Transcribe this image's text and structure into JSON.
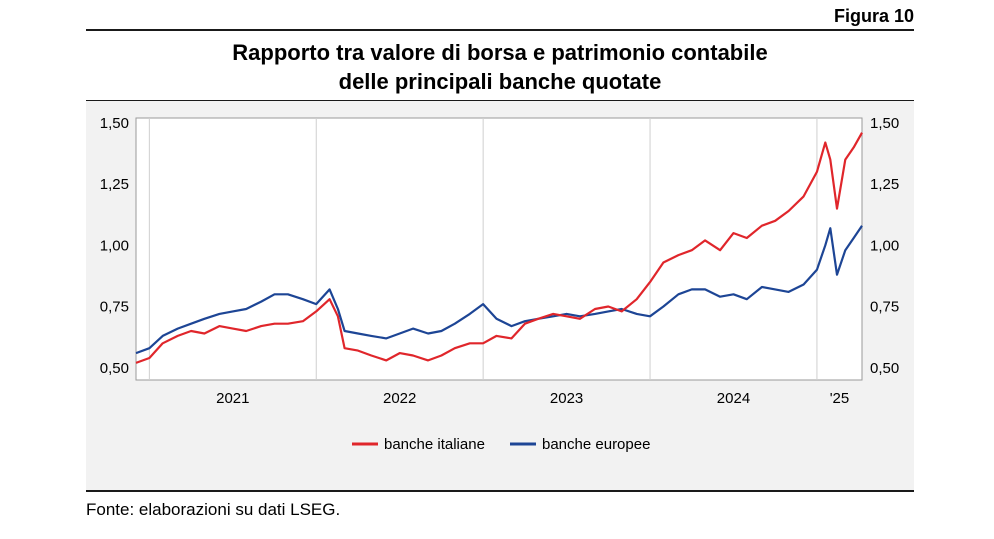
{
  "figure_label": "Figura 10",
  "title_line1": "Rapporto tra valore di borsa e patrimonio contabile",
  "title_line2": "delle principali banche quotate",
  "source": "Fonte: elaborazioni su dati LSEG.",
  "colors": {
    "banche_italiane": "#e0262b",
    "banche_europee": "#1d4595",
    "grid": "#cfcfcf",
    "panel": "#f2f2f2"
  },
  "chart_data": {
    "type": "line",
    "title": "Rapporto tra valore di borsa e patrimonio contabile delle principali banche quotate",
    "xlabel": "",
    "ylabel": "",
    "x_ticks": [
      "2021",
      "2022",
      "2023",
      "2024",
      "'25"
    ],
    "y_ticks": [
      "0,50",
      "0,75",
      "1,00",
      "1,25",
      "1,50"
    ],
    "y_tick_values": [
      0.5,
      0.75,
      1.0,
      1.25,
      1.5
    ],
    "ylim": [
      0.45,
      1.52
    ],
    "xlim": [
      2020.92,
      2025.27
    ],
    "grid": "vertical year separators",
    "legend_position": "bottom-center",
    "x": [
      2020.92,
      2021.0,
      2021.08,
      2021.17,
      2021.25,
      2021.33,
      2021.42,
      2021.5,
      2021.58,
      2021.67,
      2021.75,
      2021.83,
      2021.92,
      2022.0,
      2022.08,
      2022.13,
      2022.17,
      2022.25,
      2022.33,
      2022.42,
      2022.5,
      2022.58,
      2022.67,
      2022.75,
      2022.83,
      2022.92,
      2023.0,
      2023.08,
      2023.17,
      2023.25,
      2023.33,
      2023.42,
      2023.5,
      2023.58,
      2023.67,
      2023.75,
      2023.83,
      2023.92,
      2024.0,
      2024.08,
      2024.17,
      2024.25,
      2024.33,
      2024.42,
      2024.5,
      2024.58,
      2024.67,
      2024.75,
      2024.83,
      2024.92,
      2025.0,
      2025.05,
      2025.08,
      2025.12,
      2025.17,
      2025.22,
      2025.27
    ],
    "series": [
      {
        "name": "banche italiane",
        "values": [
          0.52,
          0.54,
          0.6,
          0.63,
          0.65,
          0.64,
          0.67,
          0.66,
          0.65,
          0.67,
          0.68,
          0.68,
          0.69,
          0.73,
          0.78,
          0.71,
          0.58,
          0.57,
          0.55,
          0.53,
          0.56,
          0.55,
          0.53,
          0.55,
          0.58,
          0.6,
          0.6,
          0.63,
          0.62,
          0.68,
          0.7,
          0.72,
          0.71,
          0.7,
          0.74,
          0.75,
          0.73,
          0.78,
          0.85,
          0.93,
          0.96,
          0.98,
          1.02,
          0.98,
          1.05,
          1.03,
          1.08,
          1.1,
          1.14,
          1.2,
          1.3,
          1.42,
          1.35,
          1.15,
          1.35,
          1.4,
          1.46
        ]
      },
      {
        "name": "banche europee",
        "values": [
          0.56,
          0.58,
          0.63,
          0.66,
          0.68,
          0.7,
          0.72,
          0.73,
          0.74,
          0.77,
          0.8,
          0.8,
          0.78,
          0.76,
          0.82,
          0.74,
          0.65,
          0.64,
          0.63,
          0.62,
          0.64,
          0.66,
          0.64,
          0.65,
          0.68,
          0.72,
          0.76,
          0.7,
          0.67,
          0.69,
          0.7,
          0.71,
          0.72,
          0.71,
          0.72,
          0.73,
          0.74,
          0.72,
          0.71,
          0.75,
          0.8,
          0.82,
          0.82,
          0.79,
          0.8,
          0.78,
          0.83,
          0.82,
          0.81,
          0.84,
          0.9,
          1.0,
          1.07,
          0.88,
          0.98,
          1.03,
          1.08
        ]
      }
    ]
  }
}
